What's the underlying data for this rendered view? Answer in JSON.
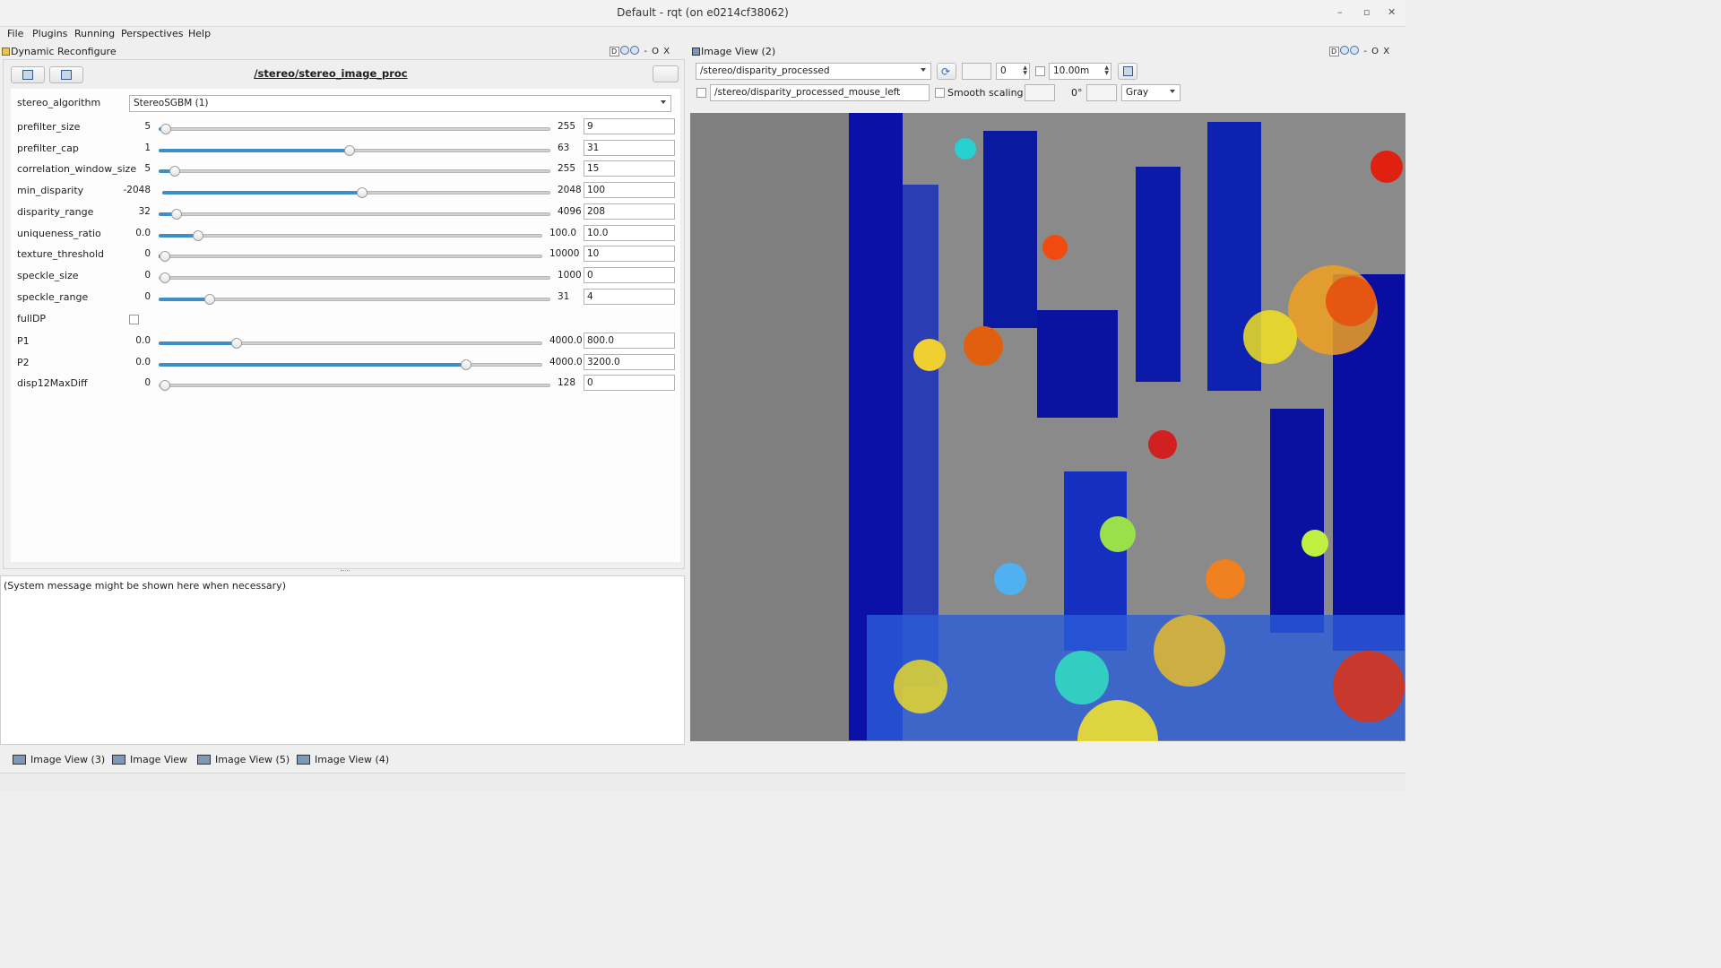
{
  "window": {
    "title": "Default - rqt (on e0214cf38062)"
  },
  "menu": [
    "File",
    "Plugins",
    "Running",
    "Perspectives",
    "Help"
  ],
  "dynamic_reconfigure": {
    "title": "Dynamic Reconfigure",
    "node": "/stereo/stereo_image_proc",
    "algorithm_label": "stereo_algorithm",
    "algorithm_value": "StereoSGBM (1)",
    "params": [
      {
        "name": "prefilter_size",
        "min": "5",
        "max": "255",
        "value": "9",
        "level": 0.016
      },
      {
        "name": "prefilter_cap",
        "min": "1",
        "max": "63",
        "value": "31",
        "level": 0.484
      },
      {
        "name": "correlation_window_size",
        "min": "5",
        "max": "255",
        "value": "15",
        "level": 0.04
      },
      {
        "name": "min_disparity",
        "min": "-2048",
        "max": "2048",
        "value": "100",
        "level": 0.512
      },
      {
        "name": "disparity_range",
        "min": "32",
        "max": "4096",
        "value": "208",
        "level": 0.043
      },
      {
        "name": "uniqueness_ratio",
        "min": "0.0",
        "max": "100.0",
        "value": "10.0",
        "level": 0.1
      },
      {
        "name": "texture_threshold",
        "min": "0",
        "max": "10000",
        "value": "10",
        "level": 0.001
      },
      {
        "name": "speckle_size",
        "min": "0",
        "max": "1000",
        "value": "0",
        "level": 0
      },
      {
        "name": "speckle_range",
        "min": "0",
        "max": "31",
        "value": "4",
        "level": 0.129
      }
    ],
    "fulldp_label": "fullDP",
    "params2": [
      {
        "name": "P1",
        "min": "0.0",
        "max": "4000.0",
        "value": "800.0",
        "level": 0.2
      },
      {
        "name": "P2",
        "min": "0.0",
        "max": "4000.0",
        "value": "3200.0",
        "level": 0.8
      },
      {
        "name": "disp12MaxDiff",
        "min": "0",
        "max": "128",
        "value": "0",
        "level": 0
      }
    ]
  },
  "system_message": "(System message might be shown here when necessary)",
  "image_view": {
    "title": "Image View (2)",
    "topic": "/stereo/disparity_processed",
    "spin_value": "0",
    "max_range": "10.00m",
    "mouse_topic": "/stereo/disparity_processed_mouse_left",
    "smooth_label": "Smooth scaling",
    "rotation": "0°",
    "colormap": "Gray"
  },
  "bottom_tabs": [
    "Image View (3)",
    "Image View",
    "Image View (5)",
    "Image View (4)"
  ]
}
